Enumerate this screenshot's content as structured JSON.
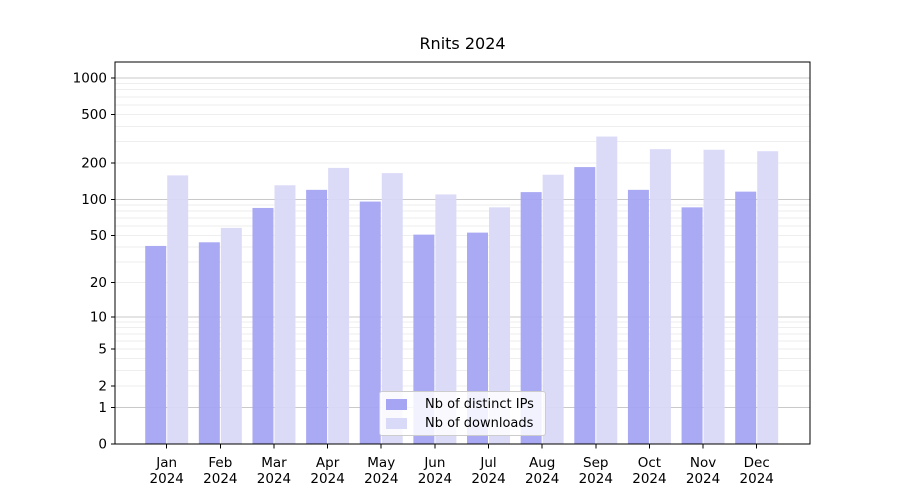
{
  "chart_data": {
    "type": "bar",
    "title": "Rnits 2024",
    "categories": [
      "Jan\n2024",
      "Feb\n2024",
      "Mar\n2024",
      "Apr\n2024",
      "May\n2024",
      "Jun\n2024",
      "Jul\n2024",
      "Aug\n2024",
      "Sep\n2024",
      "Oct\n2024",
      "Nov\n2024",
      "Dec\n2024"
    ],
    "series": [
      {
        "name": "Nb of distinct IPs",
        "color": "#a5a5f3",
        "values": [
          41,
          44,
          85,
          120,
          96,
          51,
          53,
          115,
          185,
          120,
          86,
          116
        ]
      },
      {
        "name": "Nb of downloads",
        "color": "#d9d9f8",
        "values": [
          158,
          58,
          131,
          182,
          165,
          110,
          86,
          160,
          330,
          260,
          257,
          250
        ]
      }
    ],
    "yticks": [
      0,
      1,
      2,
      5,
      10,
      20,
      50,
      100,
      200,
      500,
      1000
    ],
    "ylim": [
      0,
      1350
    ],
    "yscale": "log1p",
    "xlabel": "",
    "ylabel": "",
    "grid": "both",
    "legend_position": "lower center"
  },
  "colors": {
    "major_grid": "#c9c9c9",
    "minor_grid": "#eeeeee",
    "spine": "#000000",
    "tick_text": "#000000"
  }
}
